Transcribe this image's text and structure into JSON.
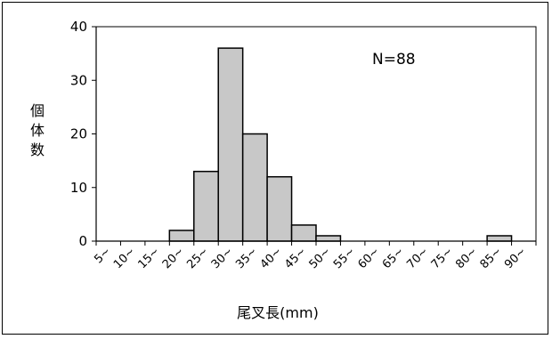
{
  "chart_data": {
    "type": "bar",
    "title": "",
    "annotation": "N=88",
    "xlabel": "尾叉長(mm)",
    "ylabel": "個体数",
    "ylim": [
      0,
      40
    ],
    "yticks": [
      0,
      10,
      20,
      30,
      40
    ],
    "grid": false,
    "categories": [
      "5~",
      "10~",
      "15~",
      "20~",
      "25~",
      "30~",
      "35~",
      "40~",
      "45~",
      "50~",
      "55~",
      "60~",
      "65~",
      "70~",
      "75~",
      "80~",
      "85~",
      "90~"
    ],
    "values": [
      0,
      0,
      0,
      2,
      13,
      36,
      20,
      12,
      3,
      1,
      0,
      0,
      0,
      0,
      0,
      0,
      1,
      0
    ],
    "colors": {
      "bar_fill": "#c8c8c8",
      "bar_stroke": "#000000"
    }
  }
}
